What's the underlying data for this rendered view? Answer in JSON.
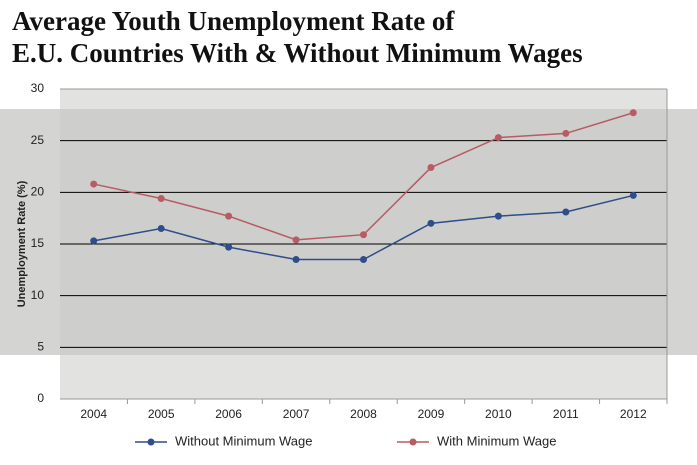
{
  "chart_data": {
    "type": "line",
    "title": [
      "Average Youth Unemployment Rate of",
      "E.U. Countries With & Without Minimum Wages"
    ],
    "y_label": "Unemployment Rate (%)",
    "categories": [
      "2004",
      "2005",
      "2006",
      "2007",
      "2008",
      "2009",
      "2010",
      "2011",
      "2012"
    ],
    "series": [
      {
        "name": "Without Minimum Wage",
        "color": "#2e4d8a",
        "values": [
          15.3,
          16.5,
          14.7,
          13.5,
          13.5,
          17.0,
          17.7,
          18.1,
          19.7
        ]
      },
      {
        "name": "With Minimum Wage",
        "color": "#b85b64",
        "values": [
          20.8,
          19.4,
          17.7,
          15.4,
          15.9,
          22.4,
          25.3,
          25.7,
          27.7
        ]
      }
    ],
    "ylim": [
      0,
      30
    ],
    "yticks": [
      0,
      5,
      10,
      15,
      20,
      25,
      30
    ],
    "grid": true,
    "legend": "bottom"
  }
}
